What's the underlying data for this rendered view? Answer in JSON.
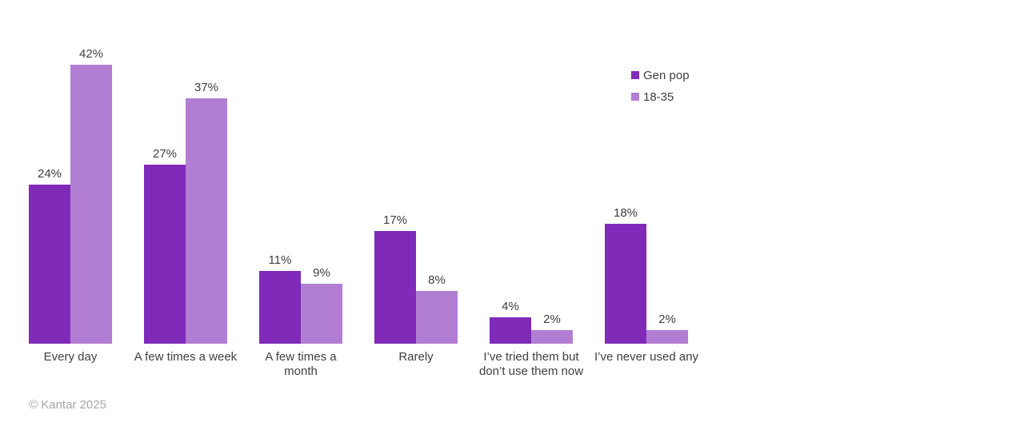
{
  "chart_data": {
    "type": "bar",
    "categories": [
      "Every day",
      "A few times a week",
      "A few times a\nmonth",
      "Rarely",
      "I’ve tried them but\ndon’t use them now",
      "I’ve never used any"
    ],
    "series": [
      {
        "name": "Gen pop",
        "color": "#7F2AB8",
        "values": [
          24,
          27,
          11,
          17,
          4,
          18
        ]
      },
      {
        "name": "18-35",
        "color": "#B27ED4",
        "values": [
          42,
          37,
          9,
          8,
          2,
          2
        ]
      }
    ],
    "value_suffix": "%",
    "title": "",
    "xlabel": "",
    "ylabel": "",
    "ylim": [
      0,
      45
    ],
    "grid": false,
    "legend_position": "top-right",
    "data_labels": true
  },
  "colors": {
    "label_text": "#404040",
    "footer_text": "#A6A6A6",
    "background": "#FFFFFF"
  },
  "footer": {
    "copyright": "© Kantar 2025"
  }
}
